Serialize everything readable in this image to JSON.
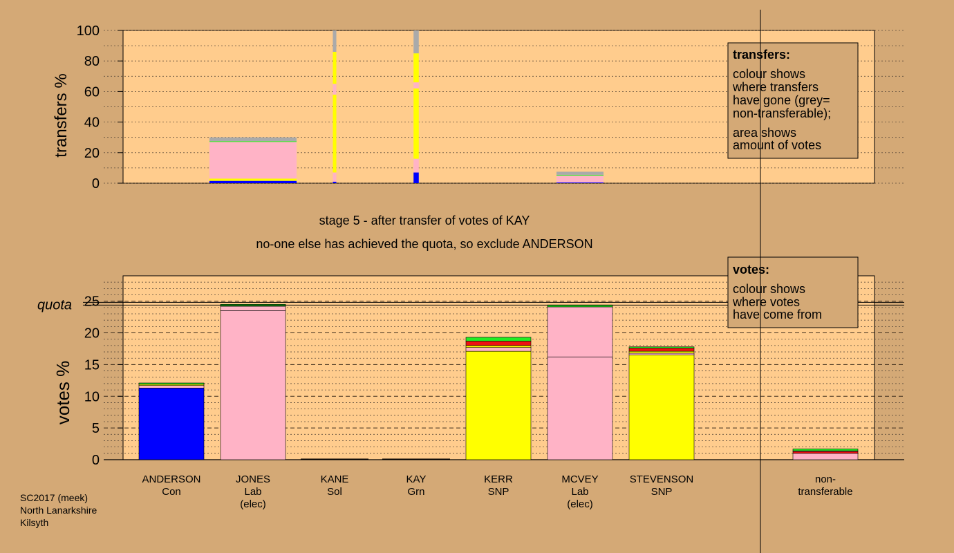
{
  "colors": {
    "background": "#d4a976",
    "plot": "#ffcc8d",
    "Con": "#0000ff",
    "Lab": "#ffb3c6",
    "SNP": "#ffff00",
    "Grn": "#22ee22",
    "Sol": "#ee1111",
    "nontransferable": "#aaaaaa"
  },
  "stage": {
    "line1": "stage 5 - after transfer of votes of KAY",
    "line2": "no-one else has achieved the quota, so exclude ANDERSON"
  },
  "legend_transfers": {
    "title": "transfers:",
    "lines": [
      "colour shows",
      "where transfers",
      "have gone (grey=",
      "non-transferable);"
    ],
    "lines2": [
      "area shows",
      "amount of votes"
    ]
  },
  "legend_votes": {
    "title": "votes:",
    "lines": [
      "colour shows",
      "where votes",
      "have come from"
    ]
  },
  "footer": {
    "lines": [
      "SC2017 (meek)",
      "North Lanarkshire",
      "Kilsyth"
    ]
  },
  "chart_data": [
    {
      "type": "bar",
      "title": "",
      "ylabel": "transfers %",
      "ylim": [
        0,
        100
      ],
      "yticks": [
        0,
        20,
        40,
        60,
        80,
        100
      ],
      "grid": true,
      "note": "stacked transfer bars; bar width proportional to transferred votes",
      "bars": [
        {
          "candidate": "ANDERSON",
          "width_share": 0,
          "segments": []
        },
        {
          "candidate": "JONES",
          "width_share": 1.0,
          "segments": [
            {
              "to": "Con",
              "value": 1.5
            },
            {
              "to": "SNP",
              "value": 1.5
            },
            {
              "to": "Lab",
              "value": 24
            },
            {
              "to": "Grn",
              "value": 0.5
            },
            {
              "to": "nontransferable",
              "value": 2.5
            }
          ]
        },
        {
          "candidate": "KANE",
          "width_share": 0.04,
          "segments": [
            {
              "to": "Con",
              "value": 1
            },
            {
              "to": "Lab",
              "value": 6
            },
            {
              "to": "SNP",
              "value": 51
            },
            {
              "to": "Lab",
              "value": 7
            },
            {
              "to": "SNP",
              "value": 21
            },
            {
              "to": "nontransferable",
              "value": 14
            }
          ]
        },
        {
          "candidate": "KAY",
          "width_share": 0.06,
          "segments": [
            {
              "to": "Con",
              "value": 7
            },
            {
              "to": "Lab",
              "value": 9
            },
            {
              "to": "SNP",
              "value": 46
            },
            {
              "to": "Lab",
              "value": 4
            },
            {
              "to": "SNP",
              "value": 19
            },
            {
              "to": "nontransferable",
              "value": 15
            }
          ]
        },
        {
          "candidate": "KERR",
          "width_share": 0,
          "segments": []
        },
        {
          "candidate": "MCVEY",
          "width_share": 0.54,
          "segments": [
            {
              "to": "Con",
              "value": 0.5
            },
            {
              "to": "Lab",
              "value": 4.5
            },
            {
              "to": "Grn",
              "value": 0.5
            },
            {
              "to": "nontransferable",
              "value": 2
            }
          ]
        },
        {
          "candidate": "STEVENSON",
          "width_share": 0,
          "segments": []
        }
      ]
    },
    {
      "type": "bar",
      "title": "",
      "ylabel": "votes %",
      "ylim": [
        0,
        29
      ],
      "yticks": [
        0,
        5,
        10,
        15,
        20,
        25
      ],
      "quota": 24.6,
      "quota_label": "quota",
      "grid": true,
      "stacked": true,
      "categories": [
        {
          "name": "ANDERSON",
          "party": "Con",
          "status": ""
        },
        {
          "name": "JONES",
          "party": "Lab",
          "status": "(elec)"
        },
        {
          "name": "KANE",
          "party": "Sol",
          "status": ""
        },
        {
          "name": "KAY",
          "party": "Grn",
          "status": ""
        },
        {
          "name": "KERR",
          "party": "SNP",
          "status": ""
        },
        {
          "name": "MCVEY",
          "party": "Lab",
          "status": "(elec)"
        },
        {
          "name": "STEVENSON",
          "party": "SNP",
          "status": ""
        },
        {
          "name": "",
          "party": "",
          "status": ""
        },
        {
          "name": "non-",
          "party": "transferable",
          "status": ""
        }
      ],
      "stacks": [
        [
          {
            "from": "Con",
            "value": 11.3
          },
          {
            "from": "Lab",
            "value": 0.4
          },
          {
            "from": "SNP",
            "value": 0.2
          },
          {
            "from": "Grn",
            "value": 0.2
          }
        ],
        [
          {
            "from": "Lab",
            "value": 23.5
          },
          {
            "from": "Lab",
            "value": 0.7
          },
          {
            "from": "Grn",
            "value": 0.3
          }
        ],
        [],
        [],
        [
          {
            "from": "SNP",
            "value": 17.1
          },
          {
            "from": "Lab",
            "value": 0.6
          },
          {
            "from": "SNP",
            "value": 0.3
          },
          {
            "from": "Sol",
            "value": 0.7
          },
          {
            "from": "Grn",
            "value": 0.6
          }
        ],
        [
          {
            "from": "Lab",
            "value": 16.2
          },
          {
            "from": "Lab",
            "value": 7.9
          },
          {
            "from": "Grn",
            "value": 0.3
          }
        ],
        [
          {
            "from": "SNP",
            "value": 16.5
          },
          {
            "from": "Lab",
            "value": 0.3
          },
          {
            "from": "SNP",
            "value": 0.3
          },
          {
            "from": "Sol",
            "value": 0.5
          },
          {
            "from": "Grn",
            "value": 0.2
          }
        ],
        [],
        [
          {
            "from": "Lab",
            "value": 1.0
          },
          {
            "from": "Sol",
            "value": 0.3
          },
          {
            "from": "Lab",
            "value": 0.1
          },
          {
            "from": "Grn",
            "value": 0.3
          }
        ]
      ]
    }
  ]
}
